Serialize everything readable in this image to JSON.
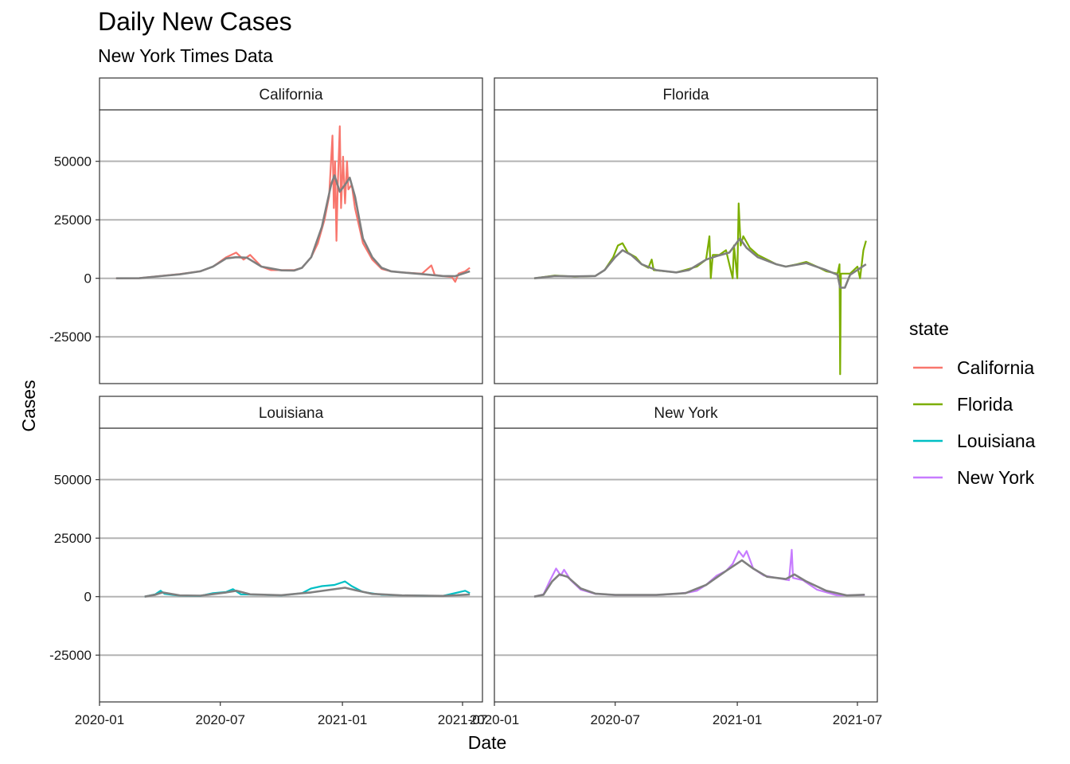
{
  "chart_data": {
    "type": "line",
    "title": "Daily New Cases",
    "subtitle": "New York Times Data",
    "xlabel": "Date",
    "ylabel": "Cases",
    "xlim": [
      "2020-01-01",
      "2021-07-31"
    ],
    "ylim": [
      -45000,
      72000
    ],
    "x_ticks": [
      "2020-01",
      "2020-07",
      "2021-01",
      "2021-07"
    ],
    "y_ticks": [
      "50000",
      "25000",
      "0",
      "-25000"
    ],
    "y_tick_values": [
      50000,
      25000,
      0,
      -25000
    ],
    "grid": "horizontal",
    "legend": {
      "title": "state",
      "position": "right",
      "entries": [
        "California",
        "Florida",
        "Louisiana",
        "New York"
      ]
    },
    "panel_colors": {
      "California": "#F8766D",
      "Florida": "#7CAE00",
      "Louisiana": "#00BFC4",
      "New York": "#C77CFF",
      "smooth": "#7F7F7F"
    },
    "panels": [
      {
        "name": "California",
        "raw": [
          [
            "2020-01-26",
            0
          ],
          [
            "2020-03-01",
            50
          ],
          [
            "2020-04-01",
            1000
          ],
          [
            "2020-05-01",
            1800
          ],
          [
            "2020-06-01",
            3000
          ],
          [
            "2020-06-20",
            5000
          ],
          [
            "2020-07-10",
            9000
          ],
          [
            "2020-07-25",
            11000
          ],
          [
            "2020-08-05",
            8000
          ],
          [
            "2020-08-15",
            10000
          ],
          [
            "2020-09-01",
            5000
          ],
          [
            "2020-09-15",
            3500
          ],
          [
            "2020-10-01",
            3500
          ],
          [
            "2020-10-20",
            3500
          ],
          [
            "2020-11-01",
            4500
          ],
          [
            "2020-11-15",
            9000
          ],
          [
            "2020-11-25",
            15000
          ],
          [
            "2020-12-05",
            25000
          ],
          [
            "2020-12-12",
            35000
          ],
          [
            "2020-12-17",
            61000
          ],
          [
            "2020-12-19",
            30000
          ],
          [
            "2020-12-21",
            50000
          ],
          [
            "2020-12-23",
            16000
          ],
          [
            "2020-12-25",
            40000
          ],
          [
            "2020-12-28",
            65000
          ],
          [
            "2020-12-30",
            30000
          ],
          [
            "2021-01-02",
            52000
          ],
          [
            "2021-01-05",
            32000
          ],
          [
            "2021-01-08",
            50000
          ],
          [
            "2021-01-10",
            38000
          ],
          [
            "2021-01-15",
            40000
          ],
          [
            "2021-01-20",
            30000
          ],
          [
            "2021-02-01",
            15000
          ],
          [
            "2021-02-15",
            8000
          ],
          [
            "2021-03-01",
            4000
          ],
          [
            "2021-03-15",
            3000
          ],
          [
            "2021-04-01",
            2500
          ],
          [
            "2021-05-01",
            2000
          ],
          [
            "2021-05-15",
            5500
          ],
          [
            "2021-05-20",
            1500
          ],
          [
            "2021-06-01",
            1000
          ],
          [
            "2021-06-15",
            500
          ],
          [
            "2021-06-20",
            -1500
          ],
          [
            "2021-06-25",
            2000
          ],
          [
            "2021-07-05",
            3000
          ],
          [
            "2021-07-12",
            4500
          ]
        ],
        "smooth": [
          [
            "2020-01-26",
            0
          ],
          [
            "2020-03-01",
            30
          ],
          [
            "2020-04-01",
            900
          ],
          [
            "2020-05-01",
            1700
          ],
          [
            "2020-06-01",
            3000
          ],
          [
            "2020-06-20",
            5000
          ],
          [
            "2020-07-10",
            8500
          ],
          [
            "2020-07-25",
            9000
          ],
          [
            "2020-08-10",
            8800
          ],
          [
            "2020-09-01",
            5000
          ],
          [
            "2020-10-01",
            3400
          ],
          [
            "2020-10-20",
            3300
          ],
          [
            "2020-11-01",
            4500
          ],
          [
            "2020-11-15",
            9000
          ],
          [
            "2020-12-01",
            22000
          ],
          [
            "2020-12-15",
            40000
          ],
          [
            "2020-12-20",
            44000
          ],
          [
            "2020-12-28",
            37000
          ],
          [
            "2021-01-05",
            40000
          ],
          [
            "2021-01-12",
            43000
          ],
          [
            "2021-01-20",
            35000
          ],
          [
            "2021-02-01",
            17000
          ],
          [
            "2021-02-15",
            9000
          ],
          [
            "2021-03-01",
            4500
          ],
          [
            "2021-03-15",
            3000
          ],
          [
            "2021-04-01",
            2500
          ],
          [
            "2021-05-01",
            1800
          ],
          [
            "2021-06-01",
            1000
          ],
          [
            "2021-06-20",
            900
          ],
          [
            "2021-07-12",
            3000
          ]
        ]
      },
      {
        "name": "Florida",
        "raw": [
          [
            "2020-03-01",
            0
          ],
          [
            "2020-04-01",
            1200
          ],
          [
            "2020-05-01",
            700
          ],
          [
            "2020-06-01",
            1000
          ],
          [
            "2020-06-15",
            3500
          ],
          [
            "2020-06-28",
            9000
          ],
          [
            "2020-07-05",
            14000
          ],
          [
            "2020-07-12",
            15000
          ],
          [
            "2020-07-20",
            11000
          ],
          [
            "2020-08-01",
            9000
          ],
          [
            "2020-08-10",
            6000
          ],
          [
            "2020-08-20",
            4500
          ],
          [
            "2020-08-25",
            8000
          ],
          [
            "2020-08-28",
            3500
          ],
          [
            "2020-09-15",
            3000
          ],
          [
            "2020-10-01",
            2500
          ],
          [
            "2020-10-20",
            4000
          ],
          [
            "2020-11-01",
            5000
          ],
          [
            "2020-11-15",
            8000
          ],
          [
            "2020-11-20",
            18000
          ],
          [
            "2020-11-22",
            0
          ],
          [
            "2020-11-25",
            10000
          ],
          [
            "2020-12-05",
            10000
          ],
          [
            "2020-12-15",
            12000
          ],
          [
            "2020-12-25",
            0
          ],
          [
            "2020-12-27",
            14000
          ],
          [
            "2021-01-01",
            0
          ],
          [
            "2021-01-03",
            32000
          ],
          [
            "2021-01-06",
            14000
          ],
          [
            "2021-01-10",
            18000
          ],
          [
            "2021-01-20",
            13000
          ],
          [
            "2021-02-01",
            10000
          ],
          [
            "2021-02-15",
            8000
          ],
          [
            "2021-03-01",
            6000
          ],
          [
            "2021-03-15",
            5000
          ],
          [
            "2021-04-01",
            6000
          ],
          [
            "2021-04-15",
            7000
          ],
          [
            "2021-05-01",
            5000
          ],
          [
            "2021-05-15",
            3000
          ],
          [
            "2021-06-01",
            2000
          ],
          [
            "2021-06-04",
            6000
          ],
          [
            "2021-06-05",
            -41000
          ],
          [
            "2021-06-06",
            2000
          ],
          [
            "2021-06-20",
            2000
          ],
          [
            "2021-07-01",
            5000
          ],
          [
            "2021-07-05",
            0
          ],
          [
            "2021-07-10",
            12000
          ],
          [
            "2021-07-14",
            16000
          ]
        ],
        "smooth": [
          [
            "2020-03-01",
            0
          ],
          [
            "2020-04-01",
            1000
          ],
          [
            "2020-05-01",
            800
          ],
          [
            "2020-06-01",
            1000
          ],
          [
            "2020-06-15",
            3500
          ],
          [
            "2020-07-01",
            9000
          ],
          [
            "2020-07-12",
            12000
          ],
          [
            "2020-07-25",
            10000
          ],
          [
            "2020-08-10",
            6000
          ],
          [
            "2020-09-01",
            3500
          ],
          [
            "2020-10-01",
            2500
          ],
          [
            "2020-10-20",
            3500
          ],
          [
            "2020-11-15",
            8000
          ],
          [
            "2020-12-01",
            9500
          ],
          [
            "2020-12-20",
            11000
          ],
          [
            "2021-01-05",
            17000
          ],
          [
            "2021-01-15",
            13000
          ],
          [
            "2021-02-01",
            9000
          ],
          [
            "2021-03-01",
            6000
          ],
          [
            "2021-03-15",
            5000
          ],
          [
            "2021-04-15",
            6500
          ],
          [
            "2021-05-15",
            3500
          ],
          [
            "2021-06-01",
            1500
          ],
          [
            "2021-06-05",
            -4000
          ],
          [
            "2021-06-12",
            -4000
          ],
          [
            "2021-06-20",
            1500
          ],
          [
            "2021-07-14",
            6000
          ]
        ]
      },
      {
        "name": "Louisiana",
        "raw": [
          [
            "2020-03-09",
            0
          ],
          [
            "2020-03-25",
            1000
          ],
          [
            "2020-04-02",
            2500
          ],
          [
            "2020-04-08",
            1200
          ],
          [
            "2020-05-01",
            400
          ],
          [
            "2020-06-01",
            300
          ],
          [
            "2020-06-20",
            1500
          ],
          [
            "2020-07-10",
            2000
          ],
          [
            "2020-07-20",
            3200
          ],
          [
            "2020-08-01",
            1000
          ],
          [
            "2020-09-01",
            800
          ],
          [
            "2020-10-01",
            500
          ],
          [
            "2020-11-01",
            1500
          ],
          [
            "2020-11-15",
            3500
          ],
          [
            "2020-12-01",
            4500
          ],
          [
            "2020-12-20",
            5000
          ],
          [
            "2021-01-05",
            6500
          ],
          [
            "2021-01-15",
            4500
          ],
          [
            "2021-02-01",
            2000
          ],
          [
            "2021-03-01",
            800
          ],
          [
            "2021-04-01",
            500
          ],
          [
            "2021-05-01",
            400
          ],
          [
            "2021-06-01",
            300
          ],
          [
            "2021-07-05",
            2500
          ],
          [
            "2021-07-12",
            1500
          ]
        ],
        "smooth": [
          [
            "2020-03-09",
            0
          ],
          [
            "2020-03-25",
            800
          ],
          [
            "2020-04-05",
            1800
          ],
          [
            "2020-05-01",
            500
          ],
          [
            "2020-06-01",
            400
          ],
          [
            "2020-07-10",
            1800
          ],
          [
            "2020-07-25",
            2500
          ],
          [
            "2020-08-15",
            1000
          ],
          [
            "2020-10-01",
            600
          ],
          [
            "2020-11-15",
            1800
          ],
          [
            "2020-12-15",
            3000
          ],
          [
            "2021-01-05",
            3800
          ],
          [
            "2021-01-20",
            2800
          ],
          [
            "2021-02-15",
            1200
          ],
          [
            "2021-04-01",
            500
          ],
          [
            "2021-06-01",
            300
          ],
          [
            "2021-07-12",
            900
          ]
        ]
      },
      {
        "name": "New York",
        "raw": [
          [
            "2020-03-01",
            0
          ],
          [
            "2020-03-15",
            1000
          ],
          [
            "2020-03-25",
            7000
          ],
          [
            "2020-04-03",
            12000
          ],
          [
            "2020-04-10",
            9000
          ],
          [
            "2020-04-15",
            11500
          ],
          [
            "2020-04-25",
            7000
          ],
          [
            "2020-05-10",
            3000
          ],
          [
            "2020-06-01",
            1200
          ],
          [
            "2020-07-01",
            700
          ],
          [
            "2020-08-01",
            700
          ],
          [
            "2020-09-01",
            700
          ],
          [
            "2020-10-01",
            1200
          ],
          [
            "2020-10-20",
            1800
          ],
          [
            "2020-11-01",
            2500
          ],
          [
            "2020-11-15",
            5000
          ],
          [
            "2020-12-01",
            9000
          ],
          [
            "2020-12-15",
            11000
          ],
          [
            "2020-12-25",
            14000
          ],
          [
            "2021-01-03",
            19500
          ],
          [
            "2021-01-10",
            17000
          ],
          [
            "2021-01-15",
            19500
          ],
          [
            "2021-01-25",
            12000
          ],
          [
            "2021-02-10",
            9000
          ],
          [
            "2021-03-01",
            8000
          ],
          [
            "2021-03-20",
            7000
          ],
          [
            "2021-03-24",
            20000
          ],
          [
            "2021-03-26",
            8000
          ],
          [
            "2021-04-10",
            7000
          ],
          [
            "2021-05-01",
            3000
          ],
          [
            "2021-06-01",
            500
          ],
          [
            "2021-07-12",
            700
          ]
        ],
        "smooth": [
          [
            "2020-03-01",
            0
          ],
          [
            "2020-03-15",
            800
          ],
          [
            "2020-03-28",
            6500
          ],
          [
            "2020-04-08",
            9500
          ],
          [
            "2020-04-20",
            8500
          ],
          [
            "2020-05-10",
            3500
          ],
          [
            "2020-06-01",
            1300
          ],
          [
            "2020-07-01",
            700
          ],
          [
            "2020-09-01",
            700
          ],
          [
            "2020-10-15",
            1500
          ],
          [
            "2020-11-15",
            5000
          ],
          [
            "2020-12-15",
            11000
          ],
          [
            "2021-01-08",
            15500
          ],
          [
            "2021-01-25",
            12000
          ],
          [
            "2021-02-15",
            8500
          ],
          [
            "2021-03-15",
            7500
          ],
          [
            "2021-03-28",
            9500
          ],
          [
            "2021-04-15",
            6500
          ],
          [
            "2021-05-15",
            2500
          ],
          [
            "2021-06-15",
            500
          ],
          [
            "2021-07-12",
            800
          ]
        ]
      }
    ]
  }
}
